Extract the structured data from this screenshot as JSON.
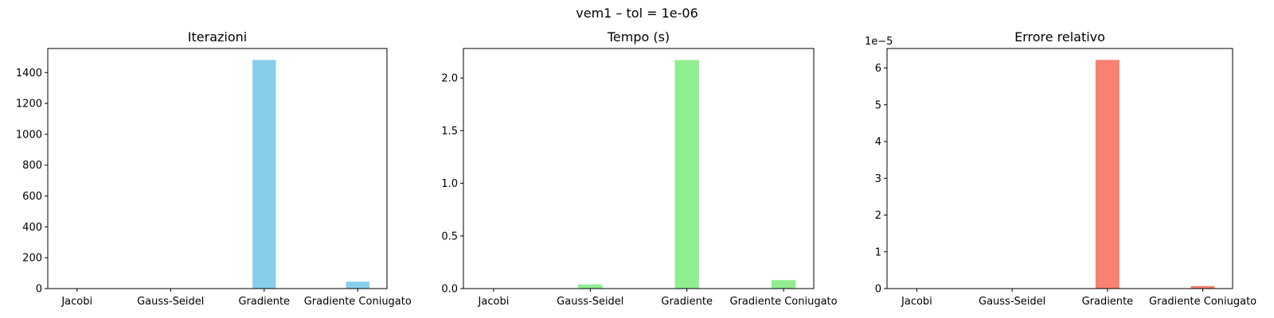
{
  "suptitle": "vem1 – tol = 1e-06",
  "chart_data": [
    {
      "type": "bar",
      "title": "Iterazioni",
      "categories": [
        "Jacobi",
        "Gauss-Seidel",
        "Gradiente",
        "Gradiente Coniugato"
      ],
      "values": [
        0,
        0,
        1482,
        45
      ],
      "ylim": [
        0,
        1556
      ],
      "yticks": [
        0,
        200,
        400,
        600,
        800,
        1000,
        1200,
        1400
      ],
      "ytick_labels": [
        "0",
        "200",
        "400",
        "600",
        "800",
        "1000",
        "1200",
        "1400"
      ],
      "offset_label": "",
      "color": "#87ceeb",
      "grid": false
    },
    {
      "type": "bar",
      "title": "Tempo (s)",
      "categories": [
        "Jacobi",
        "Gauss-Seidel",
        "Gradiente",
        "Gradiente Coniugato"
      ],
      "values": [
        0.0,
        0.04,
        2.17,
        0.08
      ],
      "ylim": [
        0,
        2.28
      ],
      "yticks": [
        0.0,
        0.5,
        1.0,
        1.5,
        2.0
      ],
      "ytick_labels": [
        "0.0",
        "0.5",
        "1.0",
        "1.5",
        "2.0"
      ],
      "offset_label": "",
      "color": "#90ee90",
      "grid": false
    },
    {
      "type": "bar",
      "title": "Errore relativo",
      "categories": [
        "Jacobi",
        "Gauss-Seidel",
        "Gradiente",
        "Gradiente Coniugato"
      ],
      "values": [
        0.0,
        0.0,
        6.22e-05,
        7e-07
      ],
      "ylim": [
        0,
        6.53e-05
      ],
      "yticks": [
        0,
        1e-05,
        2e-05,
        3e-05,
        4e-05,
        5e-05,
        6e-05
      ],
      "ytick_labels": [
        "0",
        "1",
        "2",
        "3",
        "4",
        "5",
        "6"
      ],
      "offset_label": "1e−5",
      "color": "#fa8072",
      "grid": false
    }
  ]
}
